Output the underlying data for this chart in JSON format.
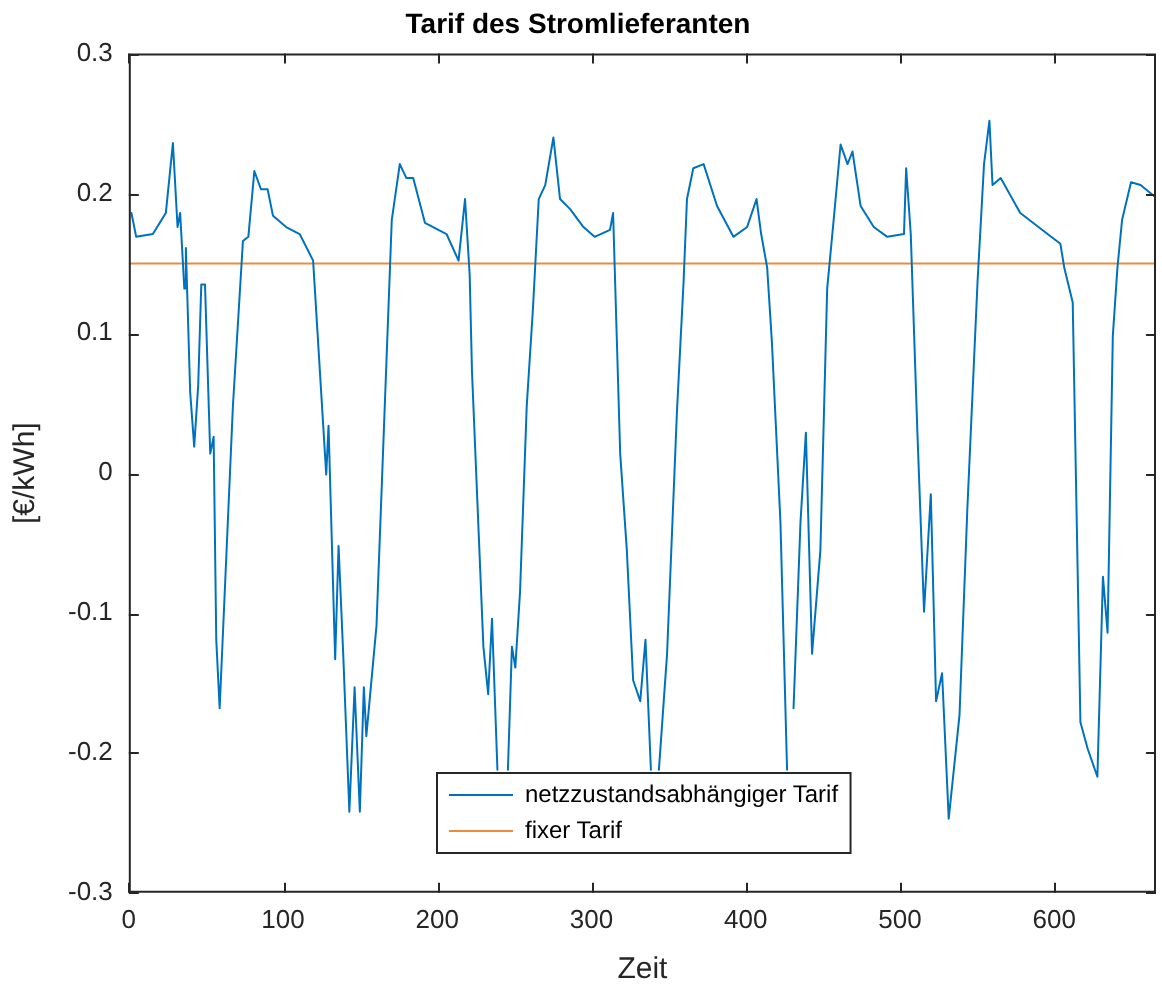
{
  "chart_data": {
    "type": "line",
    "title": "Tarif des Stromlieferanten",
    "xlabel": "Zeit",
    "ylabel": "[€/kWh]",
    "xlim": [
      0,
      666
    ],
    "xticks": [
      0,
      100,
      200,
      300,
      400,
      500,
      600
    ],
    "ylim": [
      -0.3,
      0.3
    ],
    "yticks": [
      -0.3,
      -0.2,
      -0.1,
      0,
      0.1,
      0.2,
      0.3
    ],
    "grid": false,
    "legend": "bottom",
    "series": [
      {
        "name": "netzzustandsabhängiger Tarif",
        "color": "#0072bd",
        "x": [
          1.7,
          4.8,
          15.6,
          24,
          28.6,
          31.6,
          33.3,
          36,
          37,
          39.8,
          42.4,
          45,
          47,
          49.4,
          52.8,
          55,
          56.7,
          58.9,
          67.5,
          74,
          77.5,
          81.4,
          85.7,
          90,
          93.5,
          102,
          110.8,
          119.5,
          128,
          129.5,
          133.8,
          136,
          139,
          143,
          146.4,
          149.8,
          152.4,
          154,
          160.6,
          170.5,
          175.7,
          180,
          184.4,
          192,
          206,
          213.8,
          218,
          221,
          222.5,
          229.9,
          233,
          235.5,
          239,
          242,
          245.8,
          248.4,
          250.6,
          253.7,
          258,
          262,
          265.8,
          270,
          275.3,
          279.6,
          286,
          294.8,
          302,
          312,
          314,
          318.6,
          322.9,
          327,
          331.6,
          335,
          338.5,
          341,
          343.7,
          349,
          355.4,
          359.7,
          361.9,
          366,
          372.7,
          381.4,
          392,
          400.9,
          407,
          410,
          413.9,
          417,
          422.5,
          426.8,
          429,
          431,
          435.5,
          439,
          443,
          448.4,
          452.8,
          457,
          461.5,
          466,
          469.2,
          474.5,
          483,
          491.8,
          502.6,
          504,
          507,
          511.3,
          515.6,
          520,
          523.4,
          527.3,
          531.6,
          538.6,
          543.7,
          550.3,
          554.5,
          558,
          560,
          565.3,
          578,
          595.7,
          604,
          606.5,
          612,
          617,
          621.7,
          628,
          631.6,
          634.6,
          638,
          641,
          644,
          649.8,
          656,
          664.9
        ],
        "values": [
          0.186,
          0.169,
          0.171,
          0.186,
          0.236,
          0.176,
          0.186,
          0.132,
          0.161,
          0.058,
          0.019,
          0.063,
          0.135,
          0.135,
          0.014,
          0.026,
          -0.119,
          -0.168,
          0.048,
          0.166,
          0.169,
          0.216,
          0.203,
          0.203,
          0.184,
          0.176,
          0.171,
          0.152,
          -0.001,
          0.034,
          -0.133,
          -0.052,
          -0.129,
          -0.242,
          -0.153,
          -0.242,
          -0.153,
          -0.188,
          -0.109,
          0.181,
          0.221,
          0.211,
          0.211,
          0.179,
          0.171,
          0.152,
          0.196,
          0.142,
          0.073,
          -0.124,
          -0.158,
          -0.104,
          -0.212,
          null,
          -0.212,
          -0.124,
          -0.139,
          -0.084,
          0.048,
          0.117,
          0.196,
          0.206,
          0.24,
          0.196,
          0.189,
          0.176,
          0.169,
          0.174,
          0.186,
          0.014,
          -0.055,
          -0.148,
          -0.163,
          -0.119,
          -0.212,
          null,
          -0.212,
          -0.129,
          0.044,
          0.137,
          0.196,
          0.218,
          0.221,
          0.191,
          0.169,
          0.176,
          0.196,
          0.171,
          0.147,
          0.093,
          -0.035,
          -0.212,
          null,
          -0.168,
          -0.035,
          0.029,
          -0.129,
          -0.055,
          0.132,
          0.181,
          0.235,
          0.221,
          0.23,
          0.191,
          0.176,
          0.169,
          0.171,
          0.218,
          0.171,
          0.029,
          -0.099,
          -0.015,
          -0.163,
          -0.143,
          -0.247,
          -0.173,
          -0.025,
          0.137,
          0.221,
          0.252,
          0.206,
          0.211,
          0.186,
          0.171,
          0.164,
          0.147,
          0.122,
          -0.178,
          -0.197,
          -0.217,
          -0.074,
          -0.114,
          0.098,
          0.147,
          0.181,
          0.208,
          0.206,
          0.198
        ]
      },
      {
        "name": "fixer Tarif",
        "color": "#ee8a3c",
        "x": [
          0,
          666
        ],
        "values": [
          0.15,
          0.15
        ]
      }
    ]
  }
}
